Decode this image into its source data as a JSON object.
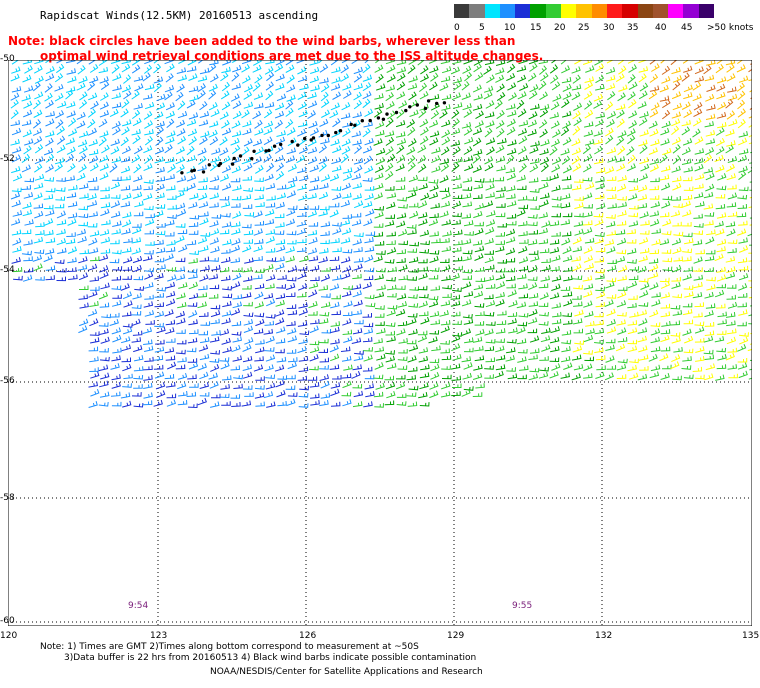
{
  "title": "Rapidscat Winds(12.5KM) 20160513 ascending",
  "note_line1": "Note: black circles have been added to the wind barbs, wherever less than",
  "note_line2": "optimal wind retrieval conditions are met due to the ISS altitude changes.",
  "legend": {
    "labels": [
      "0",
      "5",
      "10",
      "15",
      "20",
      "25",
      "30",
      "35",
      "40",
      "45",
      ">50 knots"
    ],
    "colors": [
      "#3a3a3a",
      "#7d7d7d",
      "#00e5ff",
      "#1e90ff",
      "#1b2fd6",
      "#00a000",
      "#33cc33",
      "#ffff00",
      "#ffc200",
      "#ff8c00",
      "#ff1a1a",
      "#d60000",
      "#8b4513",
      "#a0522d",
      "#ff00ff",
      "#9400d3",
      "#3a006a"
    ]
  },
  "axes": {
    "lat_labels": [
      "-50",
      "-52",
      "-54",
      "-56",
      "-58",
      "-60"
    ],
    "lon_labels": [
      "120",
      "123",
      "126",
      "129",
      "132",
      "135"
    ]
  },
  "times": [
    "9:54",
    "9:55"
  ],
  "footer": {
    "line1": "Note: 1) Times are GMT 2)Times along bottom correspond to measurement at ~50S",
    "line2": "3)Data buffer is 22 hrs from 20160513 4) Black wind barbs indicate possible contamination",
    "line3": "NOAA/NESDIS/Center for Satellite Applications and Research"
  }
}
